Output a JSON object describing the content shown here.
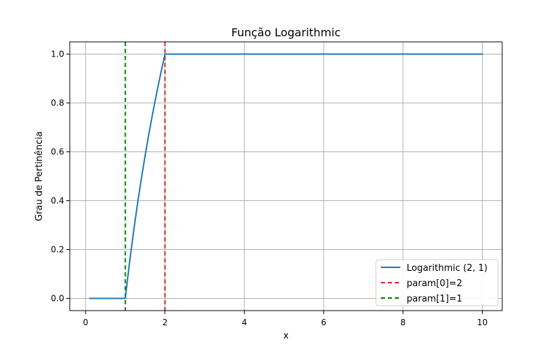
{
  "chart_data": {
    "type": "line",
    "title": "Função Logarithmic",
    "xlabel": "x",
    "ylabel": "Grau de Pertinência",
    "xlim": [
      -0.4,
      10.5
    ],
    "ylim": [
      -0.05,
      1.05
    ],
    "xticks": [
      0,
      2,
      4,
      6,
      8,
      10
    ],
    "yticks": [
      0.0,
      0.2,
      0.4,
      0.6,
      0.8,
      1.0
    ],
    "xtick_labels": [
      "0",
      "2",
      "4",
      "6",
      "8",
      "10"
    ],
    "ytick_labels": [
      "0.0",
      "0.2",
      "0.4",
      "0.6",
      "0.8",
      "1.0"
    ],
    "grid": true,
    "legend_position": "lower-right",
    "series": [
      {
        "name": "Logarithmic (2, 1)",
        "color": "#1f77b4",
        "style": "solid",
        "x": [
          0.1,
          1.0,
          1.1,
          1.2,
          1.3,
          1.4,
          1.5,
          1.6,
          1.7,
          1.8,
          1.9,
          2.0,
          2.02,
          10.0
        ],
        "y": [
          0.0,
          0.0,
          0.138,
          0.263,
          0.379,
          0.485,
          0.585,
          0.678,
          0.766,
          0.848,
          0.926,
          1.0,
          1.0,
          1.0
        ]
      }
    ],
    "reference_lines": [
      {
        "name": "param[0]=2",
        "orientation": "vertical",
        "x": 2,
        "color": "#d62728",
        "style": "dashed"
      },
      {
        "name": "param[1]=1",
        "orientation": "vertical",
        "x": 1,
        "color": "#008000",
        "style": "dashed"
      }
    ]
  }
}
